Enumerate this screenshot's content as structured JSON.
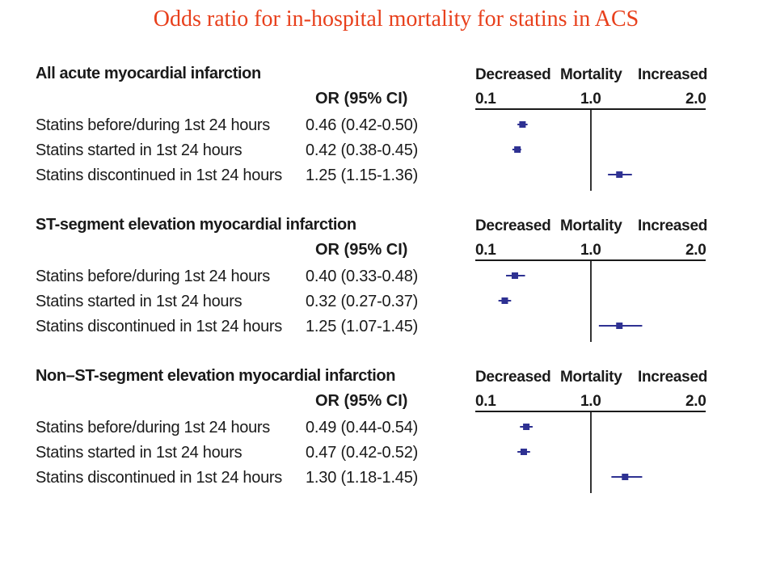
{
  "title": "Odds ratio for in-hospital mortality for statins in ACS",
  "chart_data": {
    "type": "forest",
    "x_ticks": [
      "0.1",
      "1.0",
      "2.0"
    ],
    "xlim": [
      0.1,
      2.0
    ],
    "reference_line": 1.0,
    "direction_labels": {
      "left": "Decreased",
      "center": "Mortality",
      "right": "Increased"
    },
    "column_header": "OR (95% CI)",
    "color": "#2e3192",
    "panels": [
      {
        "heading": "All acute myocardial infarction",
        "rows": [
          {
            "label": "Statins before/during 1st 24 hours",
            "text": "0.46 (0.42-0.50)",
            "or": 0.46,
            "lo": 0.42,
            "hi": 0.5
          },
          {
            "label": "Statins started in 1st 24 hours",
            "text": "0.42 (0.38-0.45)",
            "or": 0.42,
            "lo": 0.38,
            "hi": 0.45
          },
          {
            "label": "Statins discontinued in 1st 24 hours",
            "text": "1.25 (1.15-1.36)",
            "or": 1.25,
            "lo": 1.15,
            "hi": 1.36
          }
        ]
      },
      {
        "heading": "ST-segment elevation myocardial infarction",
        "rows": [
          {
            "label": "Statins before/during 1st 24 hours",
            "text": "0.40 (0.33-0.48)",
            "or": 0.4,
            "lo": 0.33,
            "hi": 0.48
          },
          {
            "label": "Statins started in 1st 24 hours",
            "text": "0.32 (0.27-0.37)",
            "or": 0.32,
            "lo": 0.27,
            "hi": 0.37
          },
          {
            "label": "Statins discontinued in 1st 24 hours",
            "text": "1.25 (1.07-1.45)",
            "or": 1.25,
            "lo": 1.07,
            "hi": 1.45
          }
        ]
      },
      {
        "heading": "Non–ST-segment elevation myocardial infarction",
        "rows": [
          {
            "label": "Statins before/during 1st 24 hours",
            "text": "0.49 (0.44-0.54)",
            "or": 0.49,
            "lo": 0.44,
            "hi": 0.54
          },
          {
            "label": "Statins started in 1st 24 hours",
            "text": "0.47 (0.42-0.52)",
            "or": 0.47,
            "lo": 0.42,
            "hi": 0.52
          },
          {
            "label": "Statins discontinued in 1st 24 hours",
            "text": "1.30 (1.18-1.45)",
            "or": 1.3,
            "lo": 1.18,
            "hi": 1.45
          }
        ]
      }
    ]
  }
}
